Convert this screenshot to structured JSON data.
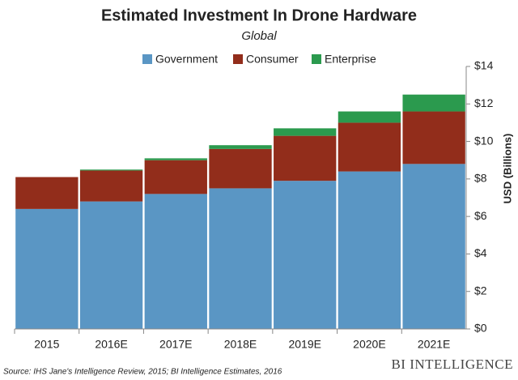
{
  "chart_data": {
    "type": "stacked-bar",
    "title": "Estimated Investment In Drone Hardware",
    "subtitle": "Global",
    "y_axis_label": "USD (Billions)",
    "source": "Source: IHS Jane's Intelligence Review, 2015; BI Intelligence Estimates, 2016",
    "branding": "BI INTELLIGENCE",
    "categories": [
      "2015",
      "2016E",
      "2017E",
      "2018E",
      "2019E",
      "2020E",
      "2021E"
    ],
    "series": [
      {
        "name": "Government",
        "color": "#5a96c4",
        "values": [
          6.4,
          6.8,
          7.2,
          7.5,
          7.9,
          8.4,
          8.8
        ]
      },
      {
        "name": "Consumer",
        "color": "#922d1b",
        "values": [
          1.7,
          1.65,
          1.8,
          2.1,
          2.4,
          2.6,
          2.8
        ]
      },
      {
        "name": "Enterprise",
        "color": "#2b9a4e",
        "values": [
          0,
          0.05,
          0.1,
          0.2,
          0.4,
          0.6,
          0.9
        ]
      }
    ],
    "ylim": [
      0,
      14
    ],
    "yticks": [
      {
        "value": 0,
        "label": "$0"
      },
      {
        "value": 2,
        "label": "$2"
      },
      {
        "value": 4,
        "label": "$4"
      },
      {
        "value": 6,
        "label": "$6"
      },
      {
        "value": 8,
        "label": "$8"
      },
      {
        "value": 10,
        "label": "$10"
      },
      {
        "value": 12,
        "label": "$12"
      },
      {
        "value": 14,
        "label": "$14"
      }
    ],
    "grid": false,
    "y_axis_side": "right",
    "legend_position": "top"
  }
}
